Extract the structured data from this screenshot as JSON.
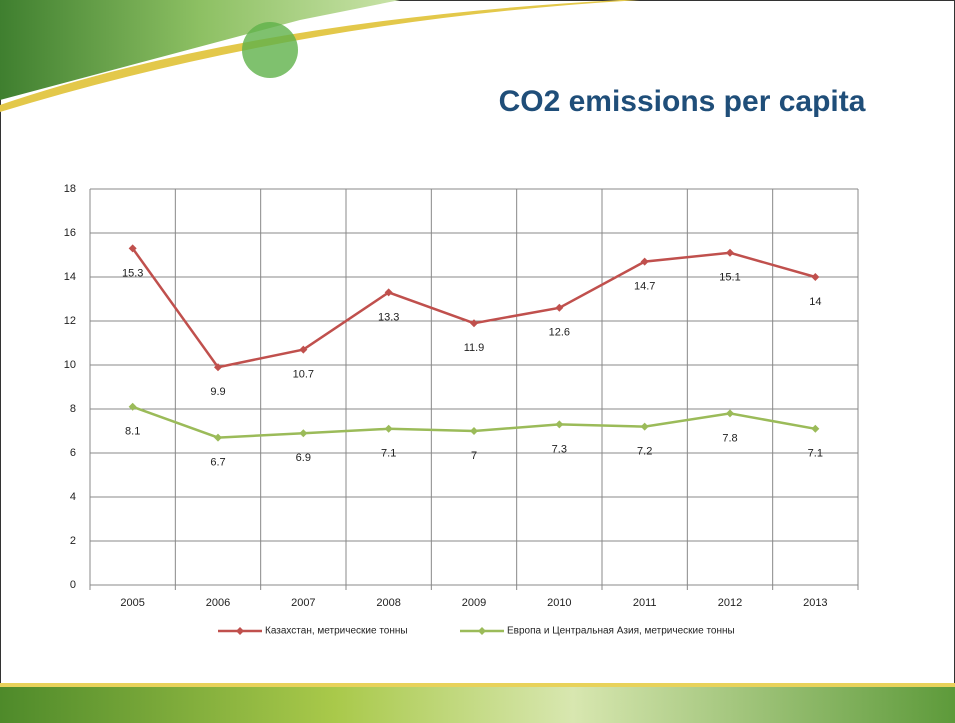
{
  "chart_data": {
    "type": "line",
    "title": "CO2 emissions per capita",
    "categories": [
      "2005",
      "2006",
      "2007",
      "2008",
      "2009",
      "2010",
      "2011",
      "2012",
      "2013"
    ],
    "series": [
      {
        "name": "Казахстан, метрические тонны",
        "color": "#c0504d",
        "values": [
          15.3,
          9.9,
          10.7,
          13.3,
          11.9,
          12.6,
          14.7,
          15.1,
          14
        ]
      },
      {
        "name": "Европа и Центральная Азия, метрические тонны",
        "color": "#9bbb59",
        "values": [
          8.1,
          6.7,
          6.9,
          7.1,
          7,
          7.3,
          7.2,
          7.8,
          7.1
        ]
      }
    ],
    "ylim": [
      0,
      18
    ],
    "yticks": [
      0,
      2,
      4,
      6,
      8,
      10,
      12,
      14,
      16,
      18
    ],
    "grid": true,
    "legend": "bottom"
  }
}
